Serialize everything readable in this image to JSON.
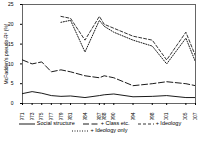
{
  "chart_data": {
    "type": "line",
    "y_label": "McFadden's pseudo-R² (%)",
    "x": [
      1971,
      1973,
      1975,
      1977,
      1979,
      1981,
      1984,
      1987,
      1988,
      1990,
      1994,
      1998,
      2001,
      2005,
      2007
    ],
    "xlim": [
      1971,
      2007
    ],
    "xticks": [
      1971,
      1973,
      1975,
      1977,
      1979,
      1981,
      1984,
      1987,
      1988,
      1990,
      1994,
      1998,
      2001,
      2005,
      2007
    ],
    "ylim": [
      0,
      25
    ],
    "yticks": [
      0,
      5,
      10,
      15,
      20,
      25
    ],
    "legend": "bottom",
    "series": [
      {
        "name": "Social structure",
        "color": "#000000",
        "line_style": "solid",
        "values": [
          2.5,
          3.0,
          2.6,
          2.0,
          1.8,
          1.9,
          1.5,
          2.0,
          2.2,
          2.4,
          1.7,
          1.8,
          2.0,
          1.5,
          1.5
        ]
      },
      {
        "name": "+ Class etc.",
        "color": "#000000",
        "line_style": "dashed",
        "values": [
          11,
          10,
          10.5,
          8,
          8.5,
          8,
          7,
          6.5,
          7,
          6.5,
          4.5,
          5,
          5.5,
          5,
          4.5
        ]
      },
      {
        "name": "+ Ideology",
        "color": "#000000",
        "line_style": "shortdash",
        "values": [
          null,
          null,
          null,
          null,
          22,
          21.5,
          16,
          22,
          20,
          19,
          17,
          16,
          11,
          18,
          12
        ]
      },
      {
        "name": "+ Ideology only",
        "color": "#000000",
        "line_style": "dotted",
        "values": [
          null,
          null,
          null,
          null,
          20.5,
          21,
          13,
          21,
          19.5,
          18,
          16,
          14.5,
          10,
          16.5,
          10.5
        ]
      }
    ]
  }
}
